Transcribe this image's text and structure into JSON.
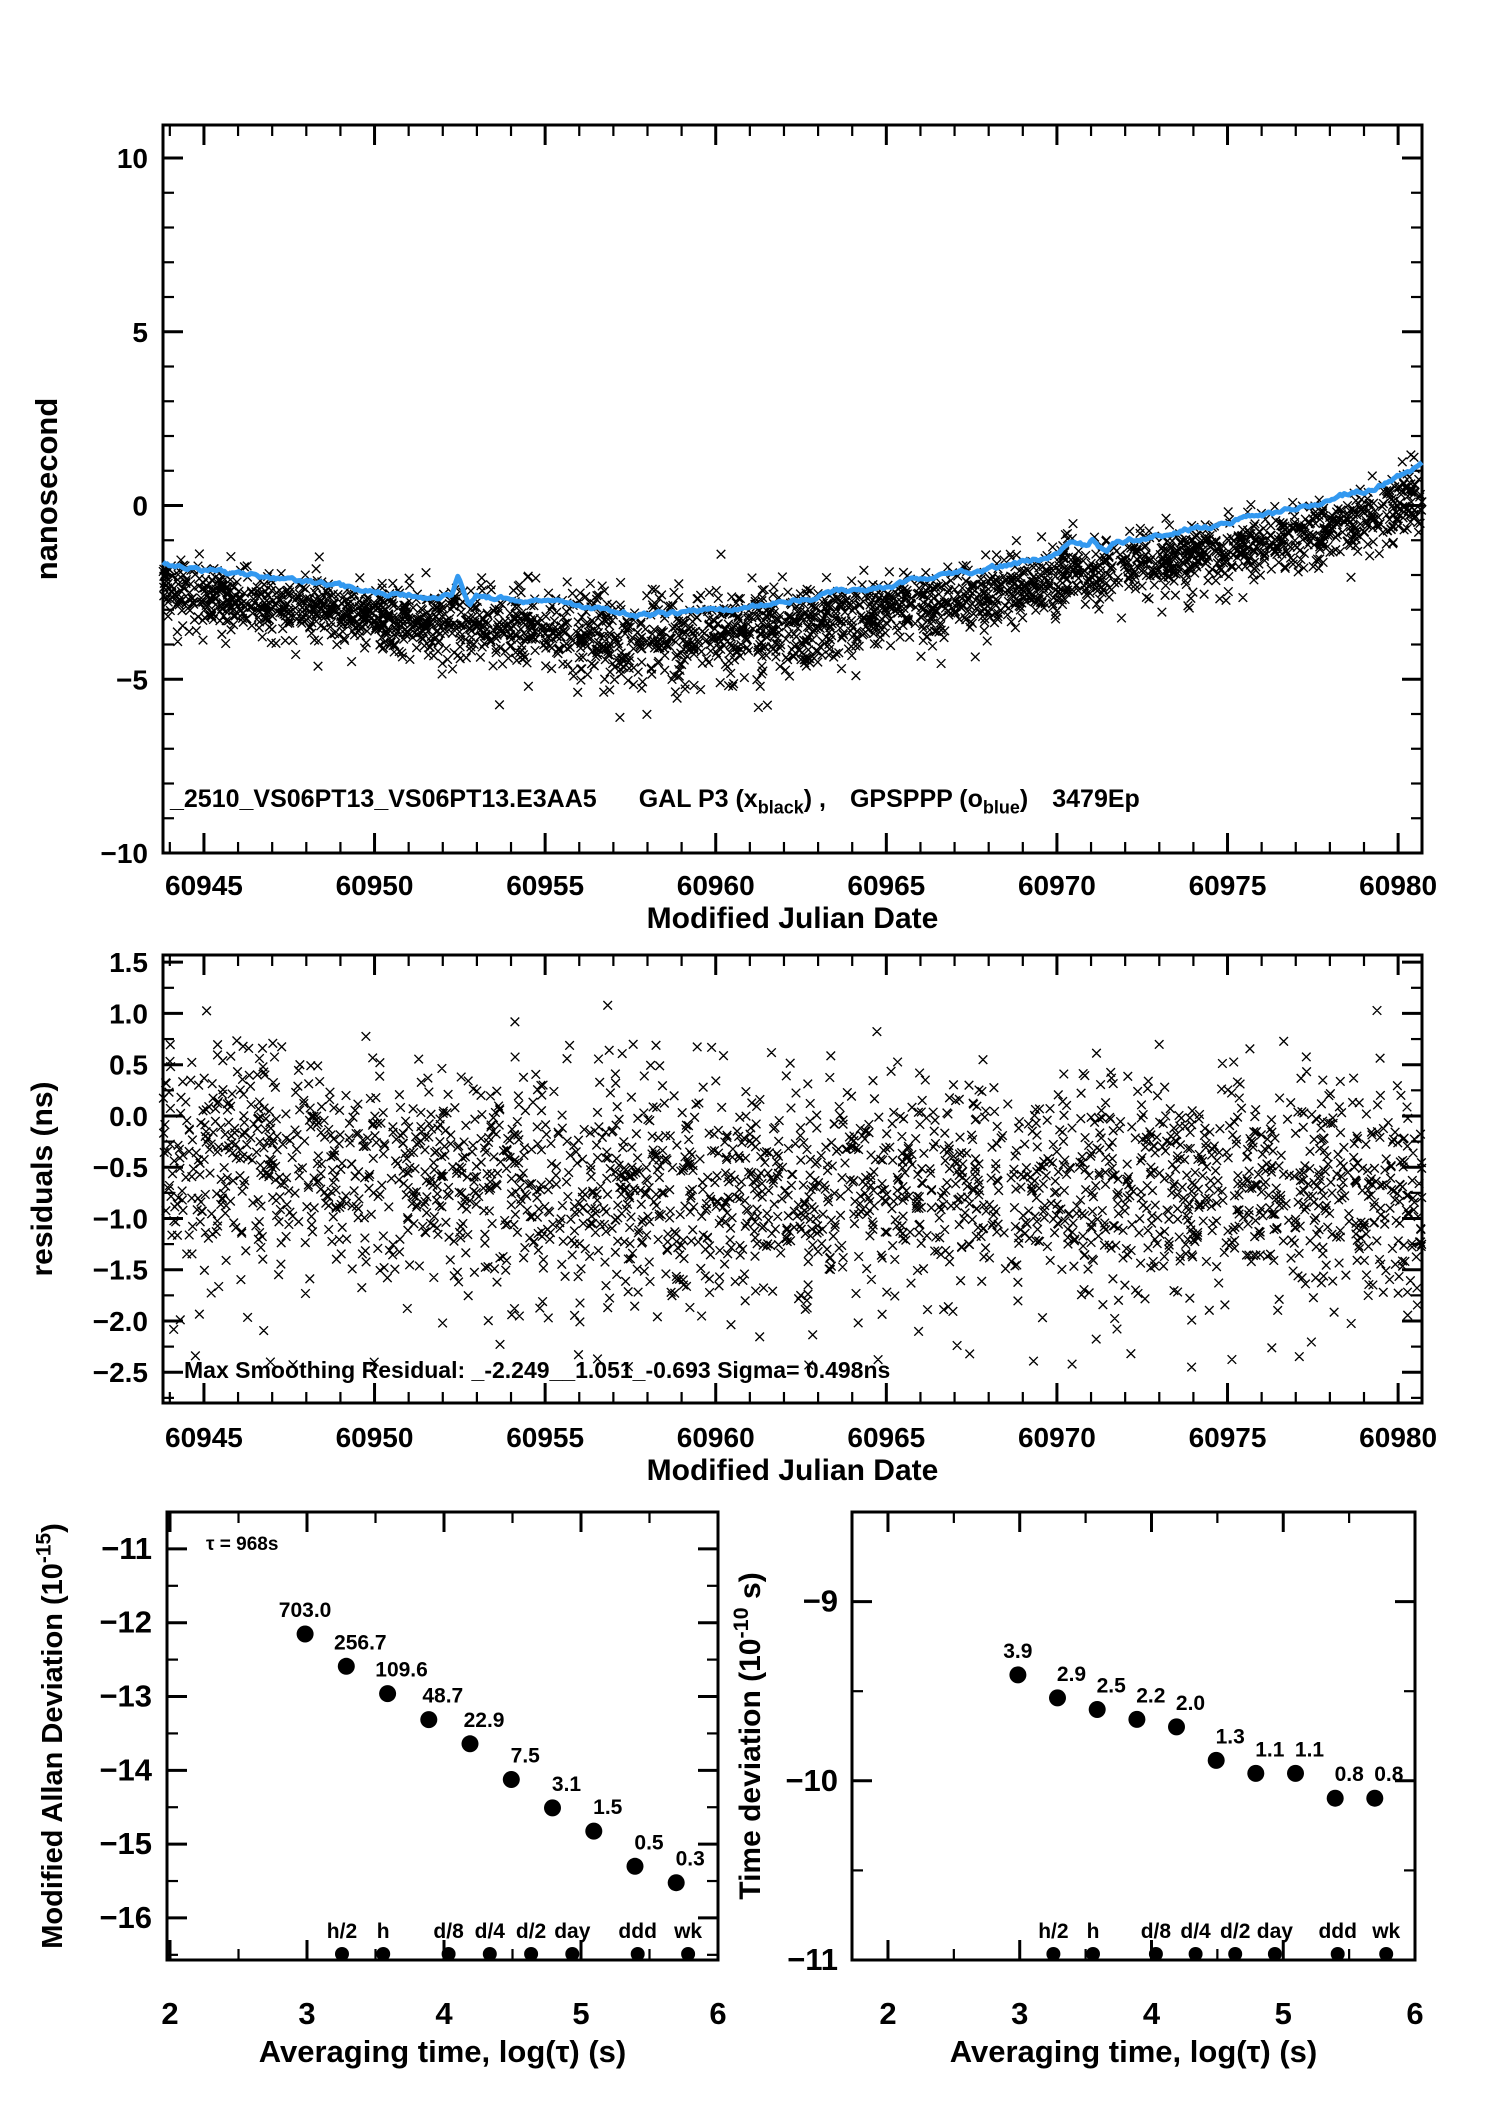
{
  "page": {
    "background": "#ffffff"
  },
  "colors": {
    "smoothed_line": "#3399f0",
    "point_label_red": "#f00000",
    "marker_black": "#000000"
  },
  "chart_data": [
    {
      "name": "phase_comparison",
      "type": "scatter",
      "title_segments": [
        {
          "t": "_2510_VS06PT13_VS06PT13.E3AA5"
        },
        {
          "t": "GAL P3 (x",
          "dx": 42
        },
        {
          "t": "black",
          "script": "sub"
        },
        {
          "t": ") ,"
        },
        {
          "t": "GPSPPP (o",
          "dx": 24
        },
        {
          "t": "blue",
          "script": "sub"
        },
        {
          "t": ")"
        },
        {
          "t": "3479Ep",
          "dx": 24
        }
      ],
      "xlabel": "Modified Julian Date",
      "ylabel": "nanosecond",
      "xlim": [
        60943.8,
        60980.7
      ],
      "ylim": [
        -10,
        10.95
      ],
      "xticks": {
        "values": [
          60945,
          60950,
          60955,
          60960,
          60965,
          60970,
          60975,
          60980
        ],
        "labels": [
          "60945",
          "60950",
          "60955",
          "60960",
          "60965",
          "60970",
          "60975",
          "60980"
        ],
        "minor_step": 1
      },
      "yticks": {
        "values": [
          10,
          5,
          0,
          -5,
          -10
        ],
        "labels": [
          "10",
          "5",
          "0",
          "−5",
          "−10"
        ],
        "minor_step": 1
      },
      "series": [
        {
          "name": "GAL P3 scatter",
          "kind": "cloud",
          "marker": "x",
          "color": "#000000",
          "n": 2800,
          "offset": -0.75,
          "sigma_base": 0.45,
          "sigma_mid_extra": 0.28,
          "mid_center": 60958.5,
          "mid_width": 4.5,
          "deep_tail_prob": 0.05
        },
        {
          "name": "GPSPPP smoothed",
          "kind": "smoothed_line",
          "marker": "o",
          "color": "#3399f0",
          "points": [
            [
              60943.8,
              -1.62
            ],
            [
              60944.5,
              -1.75
            ],
            [
              60945,
              -1.85
            ],
            [
              60945.5,
              -1.88
            ],
            [
              60946,
              -2.0
            ],
            [
              60946.5,
              -2.02
            ],
            [
              60947,
              -2.1
            ],
            [
              60947.5,
              -2.12
            ],
            [
              60948,
              -2.22
            ],
            [
              60948.5,
              -2.28
            ],
            [
              60949,
              -2.36
            ],
            [
              60949.5,
              -2.4
            ],
            [
              60950,
              -2.47
            ],
            [
              60950.5,
              -2.52
            ],
            [
              60951,
              -2.55
            ],
            [
              60951.5,
              -2.6
            ],
            [
              60952,
              -2.62
            ],
            [
              60952.3,
              -2.55
            ],
            [
              60953,
              -2.6
            ],
            [
              60953.5,
              -2.65
            ],
            [
              60954,
              -2.7
            ],
            [
              60954.5,
              -2.75
            ],
            [
              60955,
              -2.78
            ],
            [
              60955.5,
              -2.85
            ],
            [
              60956,
              -2.9
            ],
            [
              60956.5,
              -3.0
            ],
            [
              60957,
              -3.1
            ],
            [
              60957.6,
              -3.18
            ],
            [
              60958,
              -3.16
            ],
            [
              60958.5,
              -3.12
            ],
            [
              60959,
              -3.08
            ],
            [
              60959.5,
              -3.02
            ],
            [
              60960,
              -2.98
            ],
            [
              60960.5,
              -2.95
            ],
            [
              60961,
              -2.9
            ],
            [
              60961.5,
              -2.82
            ],
            [
              60962,
              -2.75
            ],
            [
              60962.5,
              -2.68
            ],
            [
              60963,
              -2.6
            ],
            [
              60963.5,
              -2.55
            ],
            [
              60964,
              -2.48
            ],
            [
              60964.5,
              -2.4
            ],
            [
              60965,
              -2.3
            ],
            [
              60965.5,
              -2.22
            ],
            [
              60966,
              -2.15
            ],
            [
              60966.5,
              -2.08
            ],
            [
              60967,
              -2.0
            ],
            [
              60967.5,
              -1.92
            ],
            [
              60968,
              -1.85
            ],
            [
              60968.5,
              -1.75
            ],
            [
              60969,
              -1.65
            ],
            [
              60969.5,
              -1.52
            ],
            [
              60970,
              -1.4
            ],
            [
              60970.4,
              -1.2
            ],
            [
              60970.7,
              -1.15
            ],
            [
              60971,
              -1.28
            ],
            [
              60971.6,
              -0.98
            ],
            [
              60972,
              -1.05
            ],
            [
              60972.5,
              -0.95
            ],
            [
              60973,
              -0.85
            ],
            [
              60973.5,
              -0.75
            ],
            [
              60974,
              -0.65
            ],
            [
              60974.5,
              -0.58
            ],
            [
              60975,
              -0.5
            ],
            [
              60975.5,
              -0.4
            ],
            [
              60976,
              -0.3
            ],
            [
              60976.5,
              -0.2
            ],
            [
              60977,
              -0.1
            ],
            [
              60977.5,
              0.02
            ],
            [
              60978,
              0.15
            ],
            [
              60978.5,
              0.3
            ],
            [
              60979,
              0.45
            ],
            [
              60979.5,
              0.6
            ],
            [
              60980,
              0.8
            ],
            [
              60980.4,
              0.95
            ],
            [
              60980.7,
              1.1
            ]
          ],
          "glitches": [
            [
              60952.45,
              0.5
            ],
            [
              60952.8,
              -0.3
            ],
            [
              60971.05,
              0.28
            ],
            [
              60971.45,
              -0.2
            ]
          ]
        }
      ]
    },
    {
      "name": "residuals",
      "type": "scatter",
      "xlabel": "Modified Julian Date",
      "ylabel": "residuals (ns)",
      "annotation": "Max Smoothing Residual: _-2.249__1.051_-0.693  Sigma= 0.498ns",
      "xlim": [
        60943.8,
        60980.7
      ],
      "ylim": [
        -2.8,
        1.57
      ],
      "xticks": {
        "values": [
          60945,
          60950,
          60955,
          60960,
          60965,
          60970,
          60975,
          60980
        ],
        "labels": [
          "60945",
          "60950",
          "60955",
          "60960",
          "60965",
          "60970",
          "60975",
          "60980"
        ],
        "minor_step": 1
      },
      "yticks": {
        "values": [
          1.5,
          1.0,
          0.5,
          0.0,
          -0.5,
          -1.0,
          -1.5,
          -2.0,
          -2.5
        ],
        "labels": [
          "1.5",
          "1.0",
          "0.5",
          "0.0",
          "−0.5",
          "−1.0",
          "−1.5",
          "−2.0",
          "−2.5"
        ],
        "minor_step": 0.25
      },
      "series": [
        {
          "name": "residual scatter",
          "kind": "cloud",
          "marker": "x",
          "color": "#000000",
          "n": 2400,
          "sigma": 0.55,
          "clip": [
            -2.45,
            1.08
          ],
          "mean_points": [
            [
              60944,
              -0.5
            ],
            [
              60947,
              -0.45
            ],
            [
              60950,
              -0.55
            ],
            [
              60953,
              -0.7
            ],
            [
              60956,
              -0.75
            ],
            [
              60959,
              -0.78
            ],
            [
              60962,
              -0.72
            ],
            [
              60965,
              -0.65
            ],
            [
              60968,
              -0.7
            ],
            [
              60971,
              -0.75
            ],
            [
              60974,
              -0.7
            ],
            [
              60977,
              -0.68
            ],
            [
              60981,
              -0.78
            ]
          ]
        }
      ]
    },
    {
      "name": "mdev",
      "type": "scatter",
      "xlabel": "Averaging time, log(τ) (s)",
      "ylabel_segments": [
        {
          "t": "Modified Allan Deviation (10"
        },
        {
          "t": "-15",
          "script": "sup"
        },
        {
          "t": ")"
        }
      ],
      "annotation": "τ = 968s",
      "xlim": [
        1.978,
        6.0
      ],
      "ylim": [
        -16.57,
        -10.5
      ],
      "xticks": {
        "values": [
          2,
          3,
          4,
          5,
          6
        ],
        "labels": [
          "2",
          "3",
          "4",
          "5",
          "6"
        ],
        "minor_step": 0.5
      },
      "yticks": {
        "values": [
          -11,
          -12,
          -13,
          -14,
          -15,
          -16
        ],
        "labels": [
          "−11",
          "−12",
          "−13",
          "−14",
          "−15",
          "−16"
        ],
        "minor_step": 0.5
      },
      "points": {
        "tau_s": [
          968,
          1936,
          3872,
          7744,
          15488,
          30976,
          61952,
          123904,
          247808,
          495616
        ],
        "values": [
          703.0,
          256.7,
          109.6,
          48.7,
          22.9,
          7.5,
          3.1,
          1.5,
          0.5,
          0.3
        ],
        "exp": -15,
        "label_color": "#f00000"
      },
      "special_markers": {
        "label_color": "#f00000",
        "items": [
          [
            "h/2",
            1800
          ],
          [
            "h",
            3600
          ],
          [
            "d/8",
            10800
          ],
          [
            "d/4",
            21600
          ],
          [
            "d/2",
            43200
          ],
          [
            "day",
            86400
          ],
          [
            "ddd",
            259200
          ],
          [
            "wk",
            604800
          ]
        ]
      }
    },
    {
      "name": "tdev",
      "type": "scatter",
      "xlabel": "Averaging time, log(τ) (s)",
      "ylabel_segments": [
        {
          "t": "Time deviation (10"
        },
        {
          "t": "-10",
          "script": "sup"
        },
        {
          "t": " s)"
        }
      ],
      "xlim": [
        1.727,
        6.0
      ],
      "ylim": [
        -11,
        -8.5
      ],
      "xticks": {
        "values": [
          2,
          3,
          4,
          5,
          6
        ],
        "labels": [
          "2",
          "3",
          "4",
          "5",
          "6"
        ],
        "minor_step": 0.5
      },
      "yticks": {
        "values": [
          -9,
          -10,
          -11
        ],
        "labels": [
          "−9",
          "−10",
          "−11"
        ],
        "minor_step": 0.5
      },
      "points": {
        "tau_s": [
          968,
          1936,
          3872,
          7744,
          15488,
          30976,
          61952,
          123904,
          247808,
          495616
        ],
        "values": [
          3.9,
          2.9,
          2.5,
          2.2,
          2.0,
          1.3,
          1.1,
          1.1,
          0.8,
          0.8
        ],
        "exp": -10,
        "label_color": "#f00000"
      },
      "special_markers": {
        "label_color": "#f00000",
        "items": [
          [
            "h/2",
            1800
          ],
          [
            "h",
            3600
          ],
          [
            "d/8",
            10800
          ],
          [
            "d/4",
            21600
          ],
          [
            "d/2",
            43200
          ],
          [
            "day",
            86400
          ],
          [
            "ddd",
            259200
          ],
          [
            "wk",
            604800
          ]
        ]
      }
    }
  ]
}
